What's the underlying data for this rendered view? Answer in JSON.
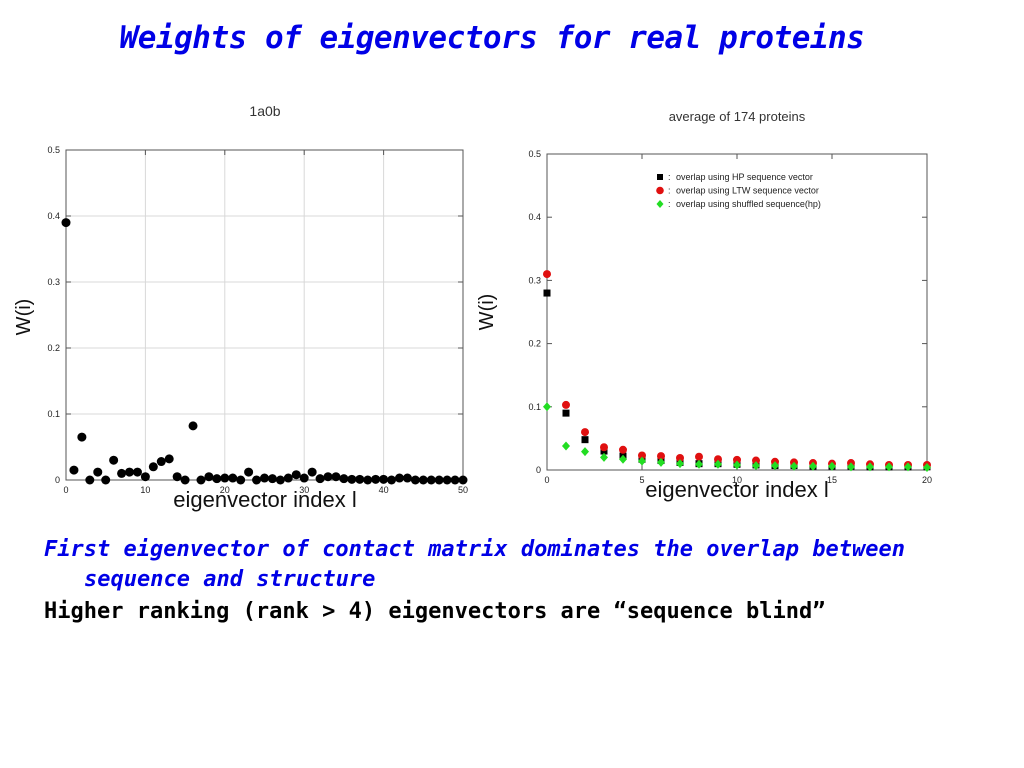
{
  "slide": {
    "title": "Weights of eigenvectors for real proteins",
    "bullets": [
      "First eigenvector of contact matrix dominates the overlap between sequence and structure",
      "Higher ranking (rank > 4) eigenvectors are “sequence blind”"
    ]
  },
  "chart_data": [
    {
      "type": "scatter",
      "title": "1a0b",
      "xlabel": "eigenvector index l",
      "ylabel": "W(i)",
      "xlim": [
        0,
        50
      ],
      "ylim": [
        0,
        0.5
      ],
      "xticks": [
        0,
        10,
        20,
        30,
        40,
        50
      ],
      "yticks": [
        0,
        0.1,
        0.2,
        0.3,
        0.4,
        0.5
      ],
      "ytick_labels": [
        "0",
        "0.1",
        "0.2",
        "0.3",
        "0.4",
        "0.5"
      ],
      "grid": true,
      "series": [
        {
          "color": "#000000",
          "x": [
            0,
            1,
            2,
            3,
            4,
            5,
            6,
            7,
            8,
            9,
            10,
            11,
            12,
            13,
            14,
            15,
            16,
            17,
            18,
            19,
            20,
            21,
            22,
            23,
            24,
            25,
            26,
            27,
            28,
            29,
            30,
            31,
            32,
            33,
            34,
            35,
            36,
            37,
            38,
            39,
            40,
            41,
            42,
            43,
            44,
            45,
            46,
            47,
            48,
            49,
            50
          ],
          "y": [
            0.39,
            0.015,
            0.065,
            0.0,
            0.012,
            0.0,
            0.03,
            0.01,
            0.012,
            0.012,
            0.005,
            0.02,
            0.028,
            0.032,
            0.005,
            0.0,
            0.082,
            0.0,
            0.005,
            0.002,
            0.003,
            0.003,
            0.0,
            0.012,
            0.0,
            0.003,
            0.002,
            0.0,
            0.003,
            0.008,
            0.003,
            0.012,
            0.002,
            0.005,
            0.005,
            0.002,
            0.001,
            0.001,
            0.0,
            0.001,
            0.001,
            0.0,
            0.003,
            0.003,
            0.0,
            0.0,
            0.0,
            0.0,
            0.0,
            0.0,
            0.0
          ]
        }
      ]
    },
    {
      "type": "scatter",
      "title": "average of 174 proteins",
      "xlabel": "eigenvector index l",
      "ylabel": "W(i)",
      "xlim": [
        0,
        20
      ],
      "ylim": [
        0,
        0.5
      ],
      "xticks": [
        0,
        5,
        10,
        15,
        20
      ],
      "yticks": [
        0,
        0.1,
        0.2,
        0.3,
        0.4,
        0.5
      ],
      "ytick_labels": [
        "0",
        "0.1",
        "0.2",
        "0.3",
        "0.4",
        "0.5"
      ],
      "grid": false,
      "legend_position": "top-right",
      "series": [
        {
          "name": "overlap using HP sequence vector",
          "marker": "square",
          "color": "#000000",
          "x": [
            0,
            1,
            2,
            3,
            4,
            5,
            6,
            7,
            8,
            9,
            10,
            11,
            12,
            13,
            14,
            15,
            16,
            17,
            18,
            19,
            20
          ],
          "y": [
            0.28,
            0.09,
            0.048,
            0.03,
            0.022,
            0.017,
            0.015,
            0.012,
            0.01,
            0.01,
            0.009,
            0.008,
            0.007,
            0.007,
            0.006,
            0.006,
            0.006,
            0.005,
            0.005,
            0.005,
            0.005
          ]
        },
        {
          "name": "overlap using LTW sequence vector",
          "marker": "circle",
          "color": "#e01010",
          "x": [
            0,
            1,
            2,
            3,
            4,
            5,
            6,
            7,
            8,
            9,
            10,
            11,
            12,
            13,
            14,
            15,
            16,
            17,
            18,
            19,
            20
          ],
          "y": [
            0.31,
            0.103,
            0.06,
            0.036,
            0.032,
            0.023,
            0.022,
            0.019,
            0.021,
            0.017,
            0.016,
            0.015,
            0.013,
            0.012,
            0.011,
            0.01,
            0.011,
            0.009,
            0.008,
            0.008,
            0.008
          ]
        },
        {
          "name": "overlap using shuffled sequence(hp)",
          "marker": "diamond",
          "color": "#22dd22",
          "x": [
            0,
            1,
            2,
            3,
            4,
            5,
            6,
            7,
            8,
            9,
            10,
            11,
            12,
            13,
            14,
            15,
            16,
            17,
            18,
            19,
            20
          ],
          "y": [
            0.1,
            0.038,
            0.029,
            0.02,
            0.017,
            0.014,
            0.012,
            0.01,
            0.009,
            0.009,
            0.008,
            0.007,
            0.007,
            0.006,
            0.006,
            0.006,
            0.005,
            0.005,
            0.005,
            0.005,
            0.004
          ]
        }
      ]
    }
  ]
}
